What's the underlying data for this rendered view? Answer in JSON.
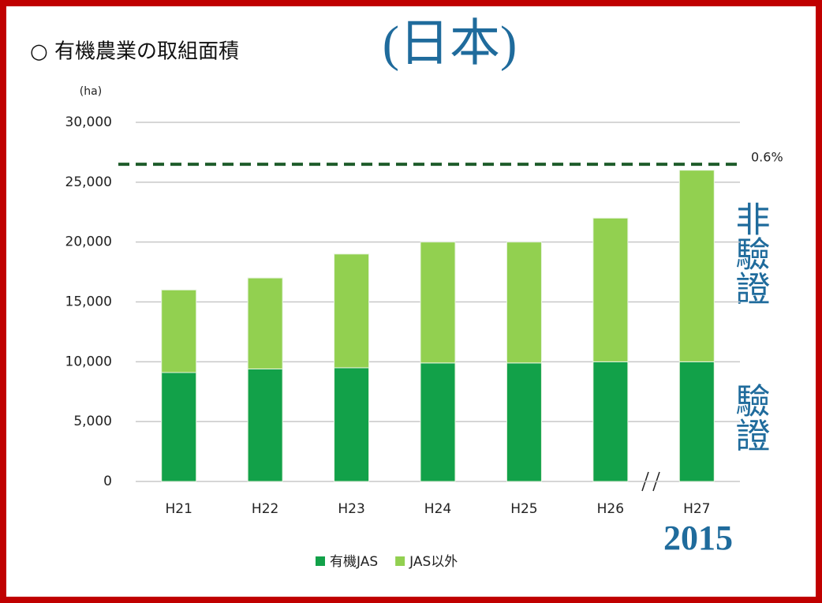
{
  "chart_data": {
    "type": "stacked_bar",
    "title": "○ 有機農業の取組面積",
    "y_axis_label": "(ha)",
    "categories": [
      "H21",
      "H22",
      "H23",
      "H24",
      "H25",
      "H26",
      "H27"
    ],
    "series": [
      {
        "name": "有機JAS",
        "color": "#12a149",
        "values": [
          9100,
          9400,
          9500,
          9900,
          9900,
          10000,
          10000
        ]
      },
      {
        "name": "JAS以外",
        "color": "#92d050",
        "values": [
          6900,
          7600,
          9500,
          10100,
          10100,
          12000,
          16000
        ]
      }
    ],
    "ylim": [
      0,
      30000
    ],
    "yticks": [
      0,
      {
        "value": 5000,
        "label": "5,000"
      },
      {
        "value": 10000,
        "label": "10,000"
      },
      {
        "value": 15000,
        "label": "15,000"
      },
      {
        "value": 20000,
        "label": "20,000"
      },
      {
        "value": 25000,
        "label": "25,000"
      },
      {
        "value": 30000,
        "label": "30,000"
      }
    ],
    "grid": true,
    "reference_line": {
      "y": 26500,
      "label": "0.6%",
      "color": "#1e5c2a"
    },
    "annotations": {
      "region": "(日本)",
      "upper": "非驗證",
      "lower": "驗證",
      "year": "2015"
    }
  }
}
